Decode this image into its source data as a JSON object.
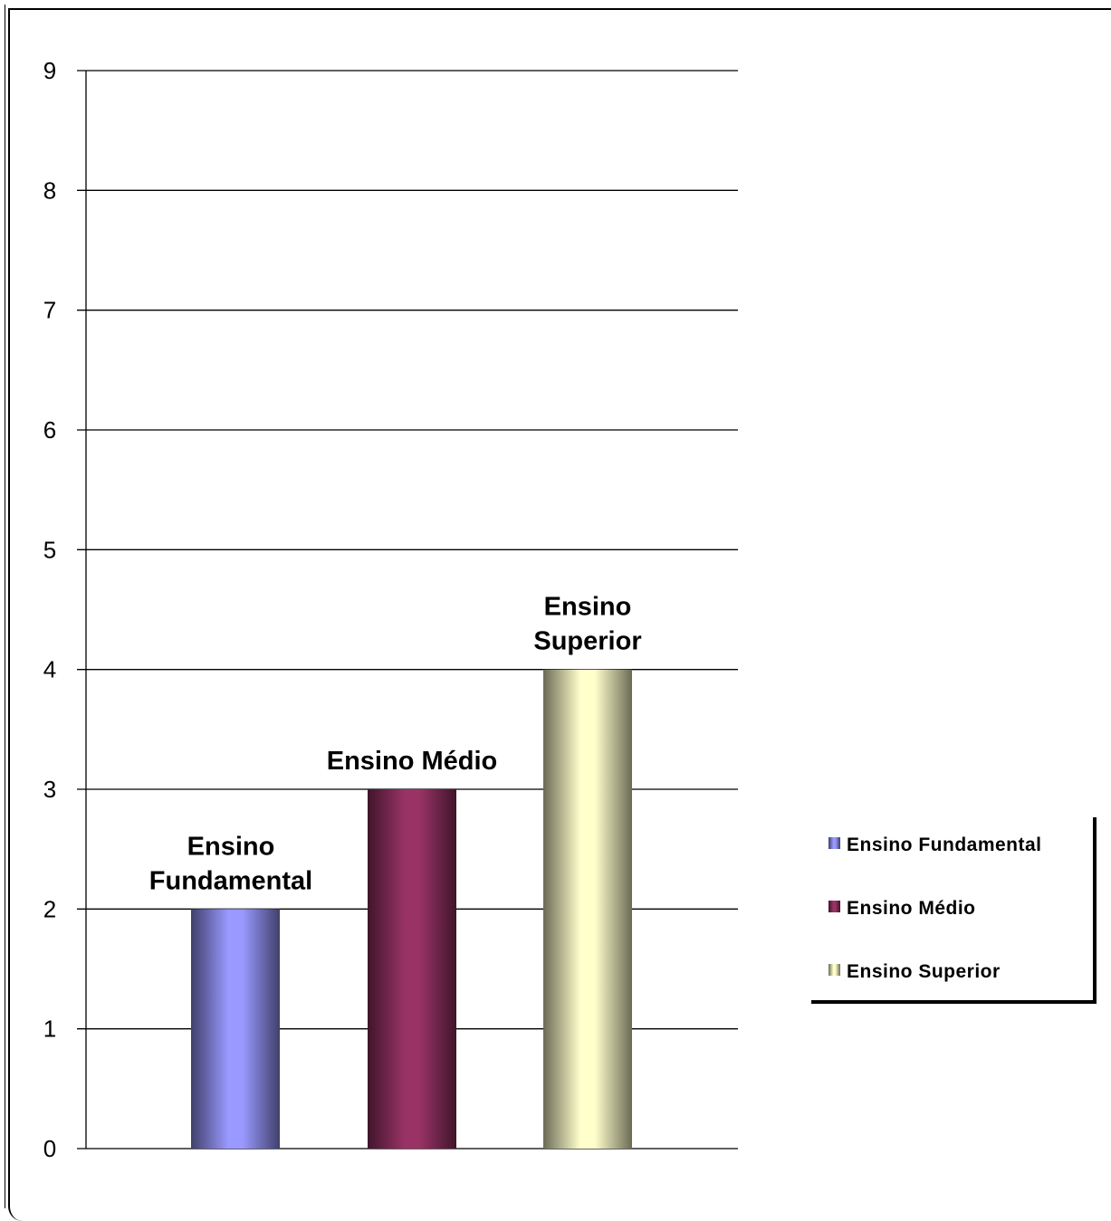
{
  "chart_data": {
    "type": "bar",
    "title": "",
    "xlabel": "",
    "ylabel": "",
    "categories": [
      "Ensino Fundamental",
      "Ensino Médio",
      "Ensino Superior"
    ],
    "values": [
      2,
      3,
      4
    ],
    "data_labels": [
      [
        "Ensino",
        "Fundamental"
      ],
      [
        "Ensino Médio"
      ],
      [
        "Ensino",
        "Superior"
      ]
    ],
    "colors": [
      "#9999ff",
      "#993366",
      "#ffffcc"
    ],
    "ylim": [
      0,
      9
    ],
    "yticks": [
      0,
      1,
      2,
      3,
      4,
      5,
      6,
      7,
      8,
      9
    ],
    "grid": true,
    "legend": {
      "placement": "right",
      "entries": [
        "Ensino Fundamental",
        "Ensino Médio",
        "Ensino Superior"
      ]
    }
  }
}
